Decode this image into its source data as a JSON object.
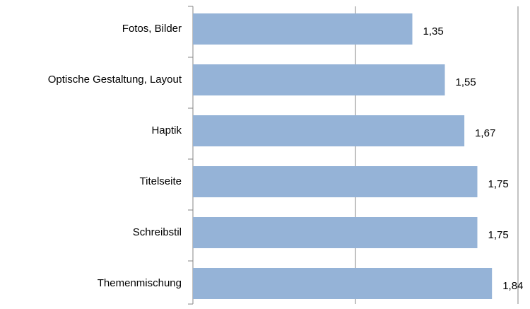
{
  "chart_data": {
    "type": "barh",
    "categories": [
      "Fotos, Bilder",
      "Optische Gestaltung, Layout",
      "Haptik",
      "Titelseite",
      "Schreibstil",
      "Themenmischung"
    ],
    "values": [
      1.35,
      1.55,
      1.67,
      1.75,
      1.75,
      1.84
    ],
    "value_labels": [
      "1,35",
      "1,55",
      "1,67",
      "1,75",
      "1,75",
      "1,84"
    ],
    "color": "#95b3d7",
    "xlim": [
      0,
      2
    ],
    "xticks": [
      0,
      1,
      2
    ],
    "grid": true
  }
}
